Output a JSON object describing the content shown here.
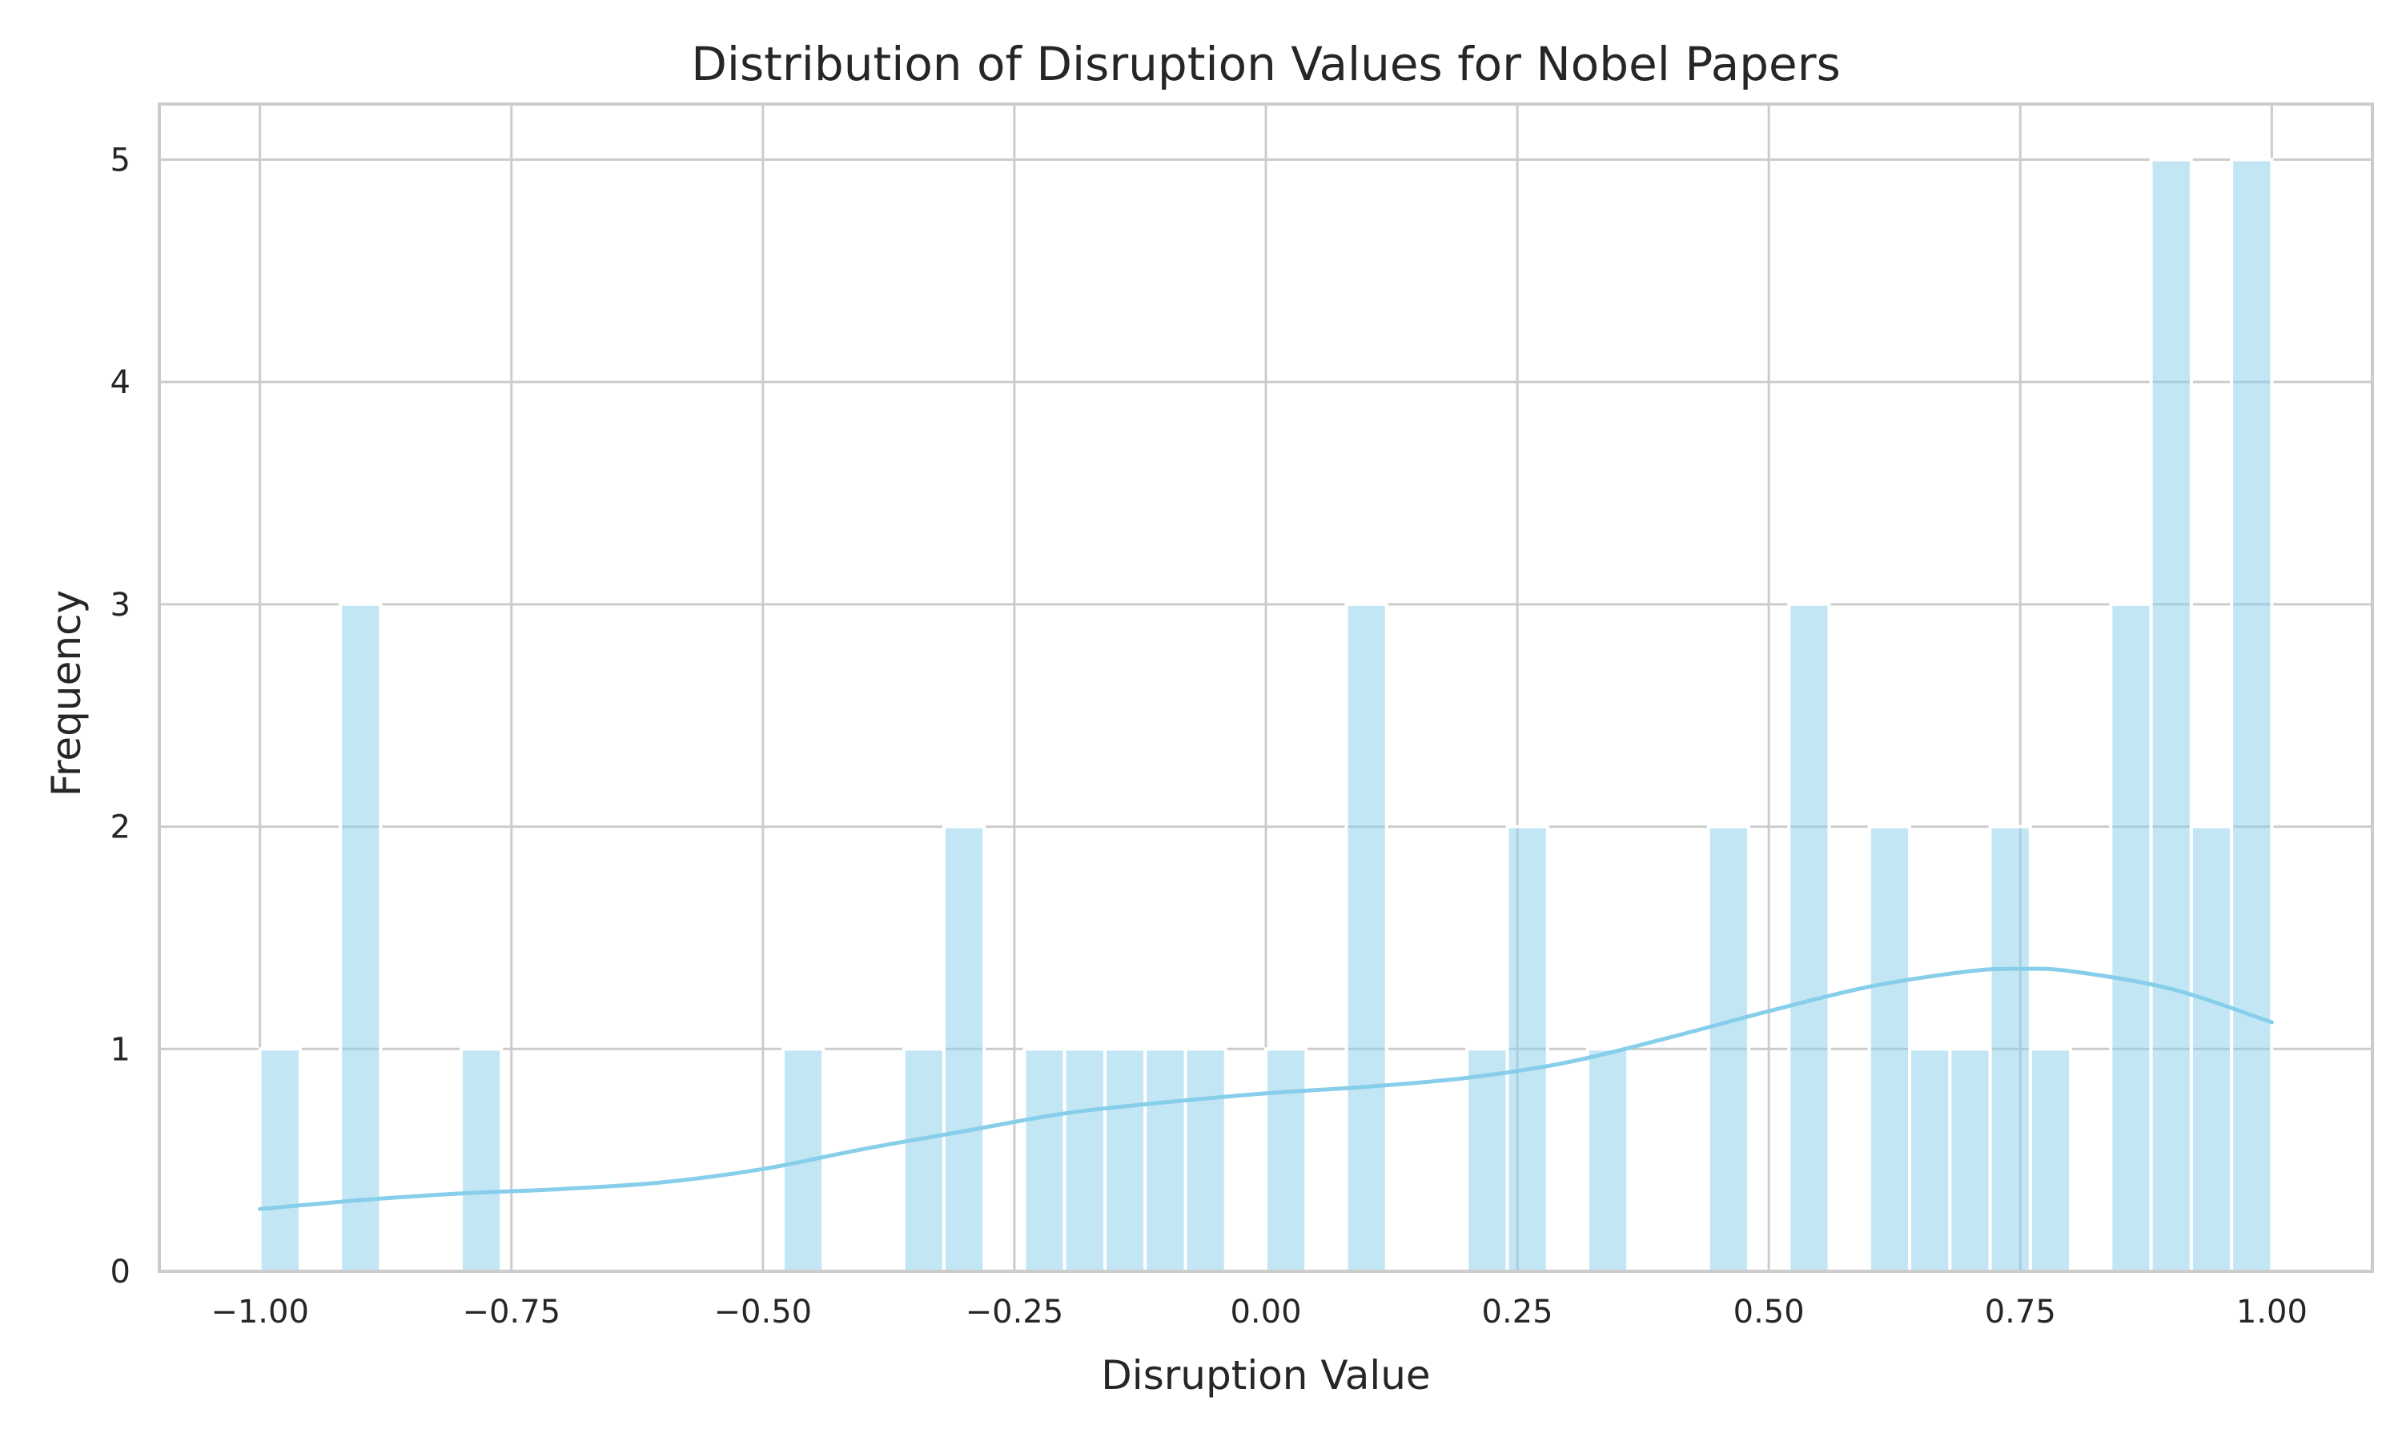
{
  "chart_data": {
    "type": "bar",
    "subtype": "histogram_with_kde",
    "title": "Distribution of Disruption Values for Nobel Papers",
    "xlabel": "Disruption Value",
    "ylabel": "Frequency",
    "xlim": [
      -1.1,
      1.1
    ],
    "ylim": [
      0,
      5.25
    ],
    "grid": true,
    "legend": "none",
    "xticks": [
      -1.0,
      -0.75,
      -0.5,
      -0.25,
      0.0,
      0.25,
      0.5,
      0.75,
      1.0
    ],
    "xtick_labels": [
      "−1.00",
      "−0.75",
      "−0.50",
      "−0.25",
      "0.00",
      "0.25",
      "0.50",
      "0.75",
      "1.00"
    ],
    "yticks": [
      0,
      1,
      2,
      3,
      4,
      5
    ],
    "ytick_labels": [
      "0",
      "1",
      "2",
      "3",
      "4",
      "5"
    ],
    "bin_width": 0.04,
    "bins": [
      {
        "start": -1.0,
        "end": -0.96,
        "count": 1
      },
      {
        "start": -0.92,
        "end": -0.88,
        "count": 3
      },
      {
        "start": -0.8,
        "end": -0.76,
        "count": 1
      },
      {
        "start": -0.48,
        "end": -0.44,
        "count": 1
      },
      {
        "start": -0.36,
        "end": -0.32,
        "count": 1
      },
      {
        "start": -0.32,
        "end": -0.28,
        "count": 2
      },
      {
        "start": -0.24,
        "end": -0.2,
        "count": 1
      },
      {
        "start": -0.2,
        "end": -0.16,
        "count": 1
      },
      {
        "start": -0.16,
        "end": -0.12,
        "count": 1
      },
      {
        "start": -0.12,
        "end": -0.08,
        "count": 1
      },
      {
        "start": -0.08,
        "end": -0.04,
        "count": 1
      },
      {
        "start": 0.0,
        "end": 0.04,
        "count": 1
      },
      {
        "start": 0.08,
        "end": 0.12,
        "count": 3
      },
      {
        "start": 0.2,
        "end": 0.24,
        "count": 1
      },
      {
        "start": 0.24,
        "end": 0.28,
        "count": 2
      },
      {
        "start": 0.32,
        "end": 0.36,
        "count": 1
      },
      {
        "start": 0.44,
        "end": 0.48,
        "count": 2
      },
      {
        "start": 0.52,
        "end": 0.56,
        "count": 3
      },
      {
        "start": 0.6,
        "end": 0.64,
        "count": 2
      },
      {
        "start": 0.64,
        "end": 0.68,
        "count": 1
      },
      {
        "start": 0.68,
        "end": 0.72,
        "count": 1
      },
      {
        "start": 0.72,
        "end": 0.76,
        "count": 2
      },
      {
        "start": 0.76,
        "end": 0.8,
        "count": 1
      },
      {
        "start": 0.84,
        "end": 0.88,
        "count": 3
      },
      {
        "start": 0.88,
        "end": 0.92,
        "count": 5
      },
      {
        "start": 0.92,
        "end": 0.96,
        "count": 2
      },
      {
        "start": 0.96,
        "end": 1.0,
        "count": 5
      }
    ],
    "kde": {
      "x": [
        -1.0,
        -0.9,
        -0.8,
        -0.7,
        -0.6,
        -0.5,
        -0.4,
        -0.3,
        -0.2,
        -0.1,
        0.0,
        0.1,
        0.2,
        0.3,
        0.4,
        0.5,
        0.6,
        0.7,
        0.75,
        0.8,
        0.9,
        1.0
      ],
      "y": [
        0.28,
        0.32,
        0.35,
        0.37,
        0.4,
        0.46,
        0.55,
        0.63,
        0.71,
        0.76,
        0.8,
        0.83,
        0.87,
        0.94,
        1.05,
        1.17,
        1.28,
        1.35,
        1.36,
        1.35,
        1.27,
        1.12
      ]
    },
    "colors": {
      "bar_fill": "#87ceeb",
      "bar_opacity": 0.5,
      "kde_line": "#87ceeb",
      "grid": "#cccccc",
      "spine": "#cccccc",
      "text": "#262626",
      "background": "#ffffff"
    }
  }
}
